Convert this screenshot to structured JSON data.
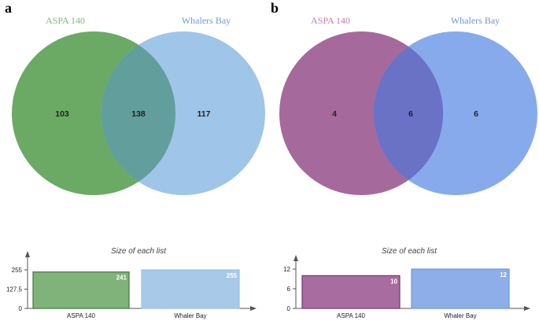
{
  "panels": [
    {
      "label": "a",
      "venn": {
        "sets": [
          {
            "name": "ASPA 140",
            "fill": "#6aaa64",
            "title_color": "#7fb879"
          },
          {
            "name": "Whalers Bay",
            "fill": "#9fc5e8",
            "title_color": "#6d9bd8"
          }
        ],
        "counts": {
          "left_only": "103",
          "overlap": "138",
          "right_only": "117"
        },
        "overlap_fill": "#629e9c"
      },
      "chart_data": {
        "type": "bar",
        "title": "Size of each list",
        "categories": [
          "ASPA 140",
          "Whaler Bay"
        ],
        "values": [
          241,
          255
        ],
        "value_labels": [
          "241",
          "255"
        ],
        "yticks": [
          "255",
          "127.5",
          "0"
        ],
        "ytick_values": [
          255,
          127.5,
          0
        ],
        "ylim": [
          0,
          255
        ],
        "bar_fills": [
          "#7fb379",
          "#a8c9e8"
        ],
        "bar_strokes": [
          "#3f7a3a",
          "#9cc0e4"
        ]
      }
    },
    {
      "label": "b",
      "venn": {
        "sets": [
          {
            "name": "ASPA 140",
            "fill": "#a6699c",
            "title_color": "#c07eb6"
          },
          {
            "name": "Whalers Bay",
            "fill": "#87aaec",
            "title_color": "#6e95dc"
          }
        ],
        "counts": {
          "left_only": "4",
          "overlap": "6",
          "right_only": "6"
        },
        "overlap_fill": "#6a72c6"
      },
      "chart_data": {
        "type": "bar",
        "title": "Size of each list",
        "categories": [
          "ASPA 140",
          "Whaler Bay"
        ],
        "values": [
          10,
          12
        ],
        "value_labels": [
          "10",
          "12"
        ],
        "yticks": [
          "12",
          "6",
          "0"
        ],
        "ytick_values": [
          12,
          6,
          0
        ],
        "ylim": [
          0,
          12
        ],
        "bar_fills": [
          "#a96ca0",
          "#8eaeea"
        ],
        "bar_strokes": [
          "#6e3a66",
          "#6f95dc"
        ]
      }
    }
  ]
}
